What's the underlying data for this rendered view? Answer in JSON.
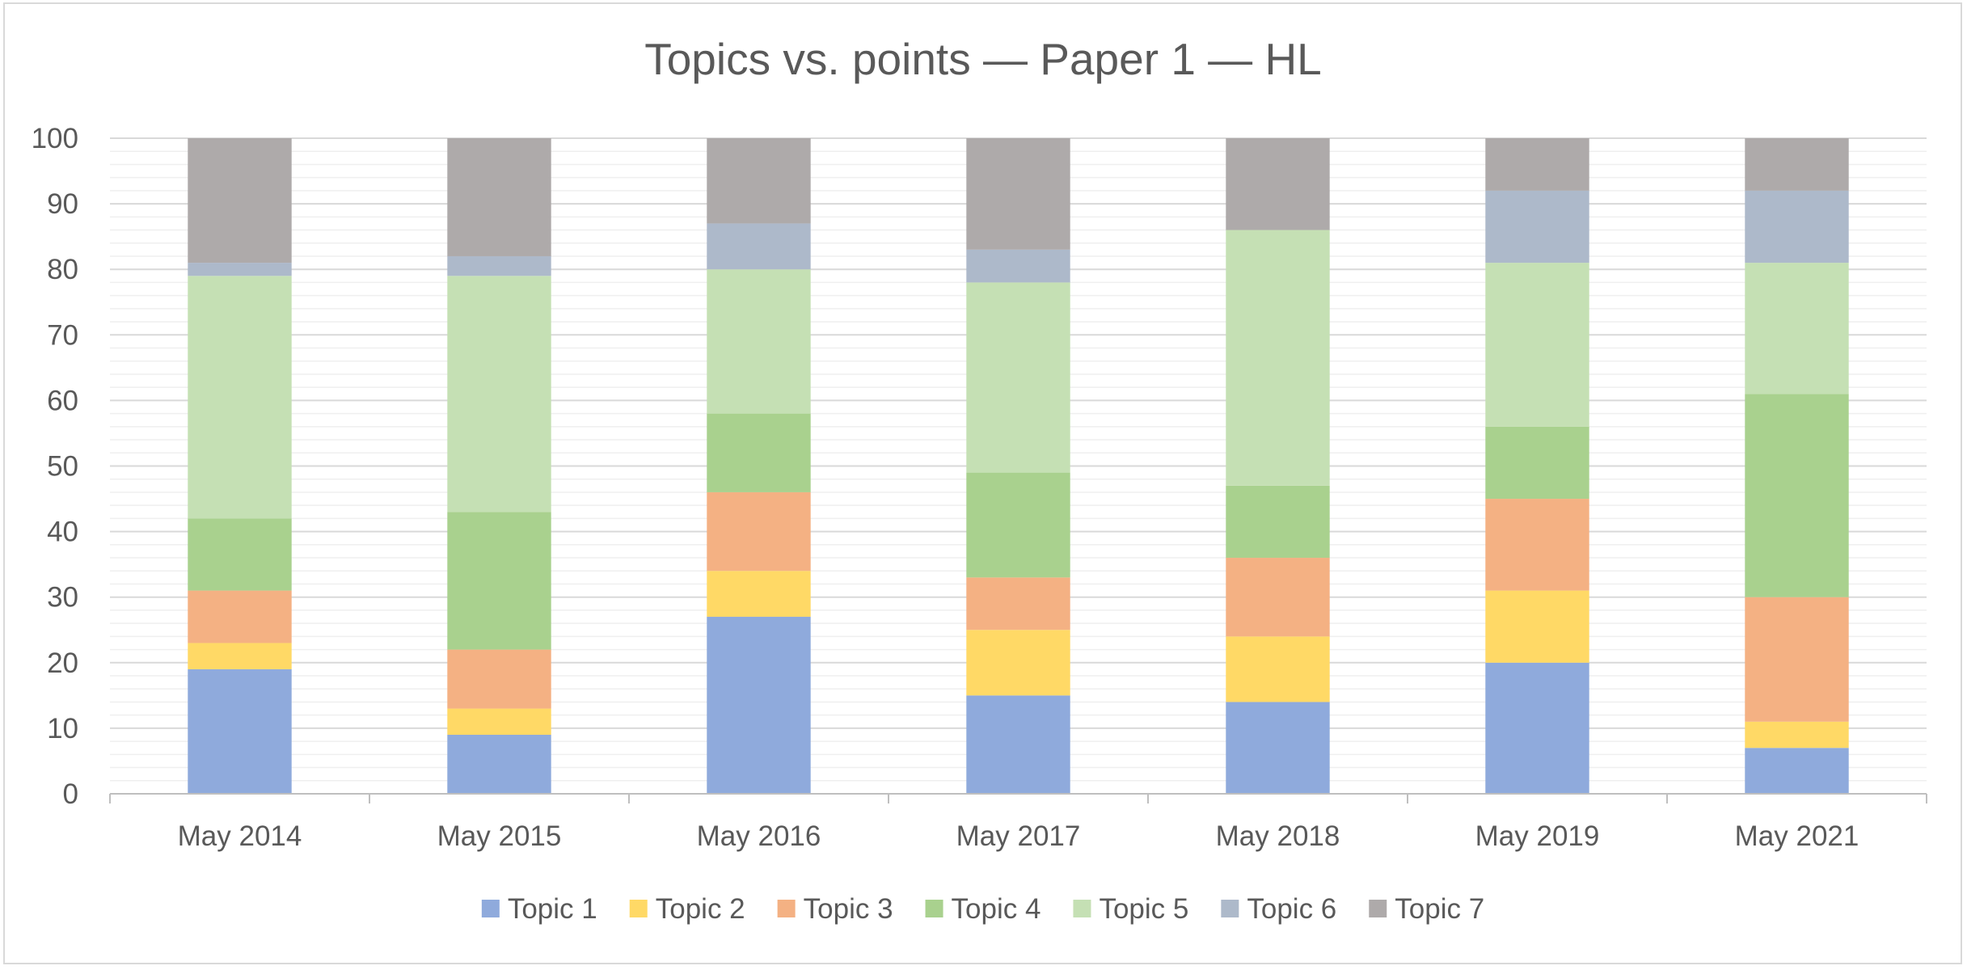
{
  "chart_data": {
    "type": "bar",
    "stacked": true,
    "title": "Topics vs. points — Paper 1 — HL",
    "xlabel": "",
    "ylabel": "",
    "ylim": [
      0,
      100
    ],
    "yticks": [
      0,
      10,
      20,
      30,
      40,
      50,
      60,
      70,
      80,
      90,
      100
    ],
    "grid": true,
    "legend_position": "bottom",
    "categories": [
      "May 2014",
      "May 2015",
      "May 2016",
      "May 2017",
      "May 2018",
      "May 2019",
      "May 2021"
    ],
    "series": [
      {
        "name": "Topic 1",
        "color": "#8FAADC",
        "values": [
          19,
          9,
          27,
          15,
          14,
          20,
          7
        ]
      },
      {
        "name": "Topic 2",
        "color": "#FFD966",
        "values": [
          4,
          4,
          7,
          10,
          10,
          11,
          4
        ]
      },
      {
        "name": "Topic 3",
        "color": "#F4B183",
        "values": [
          8,
          9,
          12,
          8,
          12,
          14,
          19
        ]
      },
      {
        "name": "Topic 4",
        "color": "#A9D18E",
        "values": [
          11,
          21,
          12,
          16,
          11,
          11,
          31
        ]
      },
      {
        "name": "Topic 5",
        "color": "#C5E0B4",
        "values": [
          37,
          36,
          22,
          29,
          39,
          25,
          20
        ]
      },
      {
        "name": "Topic 6",
        "color": "#ADB9CA",
        "values": [
          2,
          3,
          7,
          5,
          0,
          11,
          11
        ]
      },
      {
        "name": "Topic 7",
        "color": "#AEAAAA",
        "values": [
          19,
          18,
          13,
          17,
          14,
          8,
          8
        ]
      }
    ]
  }
}
